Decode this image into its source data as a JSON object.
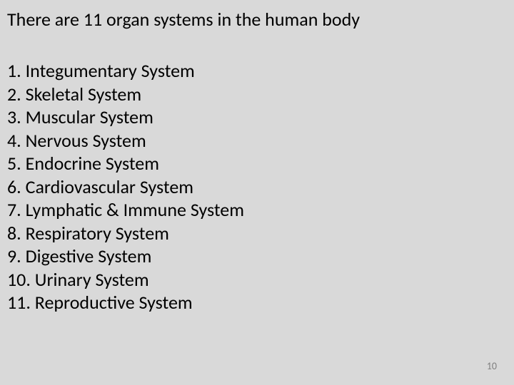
{
  "title": "There are 11 organ systems in the human body",
  "items": [
    "1. Integumentary System",
    "2. Skeletal System",
    "3. Muscular System",
    "4. Nervous System",
    "5. Endocrine System",
    "6. Cardiovascular System",
    "7. Lymphatic & Immune System",
    "8. Respiratory System",
    "9. Digestive System",
    "10. Urinary System",
    "11. Reproductive System"
  ],
  "page_number": "10",
  "colors": {
    "background": "#d9d9d9",
    "text": "#000000",
    "page_number": "#808080"
  },
  "typography": {
    "title_fontsize": 26,
    "item_fontsize": 26,
    "page_number_fontsize": 14,
    "font_family": "Calibri"
  }
}
